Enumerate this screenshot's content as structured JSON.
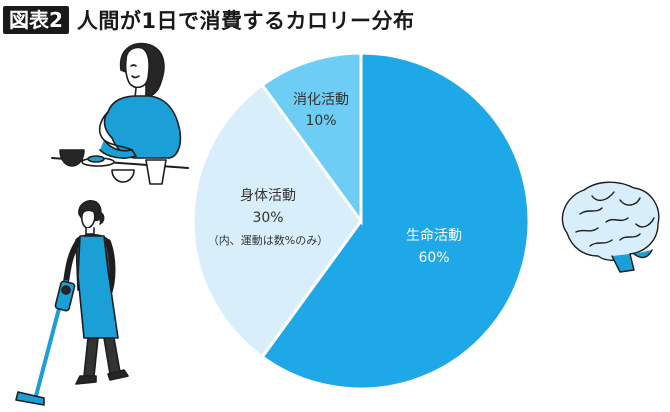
{
  "header": {
    "badge": "図表2",
    "title": "人間が1日で消費するカロリー分布"
  },
  "chart_data": {
    "type": "pie",
    "slices": [
      {
        "label": "生命活動",
        "value": 60,
        "value_label": "60%",
        "note": "",
        "color": "#1ea8e8"
      },
      {
        "label": "身体活動",
        "value": 30,
        "value_label": "30%",
        "note": "（内、運動は数%のみ）",
        "color": "#d8effb"
      },
      {
        "label": "消化活動",
        "value": 10,
        "value_label": "10%",
        "note": "",
        "color": "#6ecdf5"
      }
    ],
    "start": "12 o'clock",
    "direction": "clockwise"
  },
  "illustrations": {
    "eating_person": "woman-eating-icon",
    "vacuuming_person": "woman-vacuuming-icon",
    "brain": "brain-icon"
  }
}
